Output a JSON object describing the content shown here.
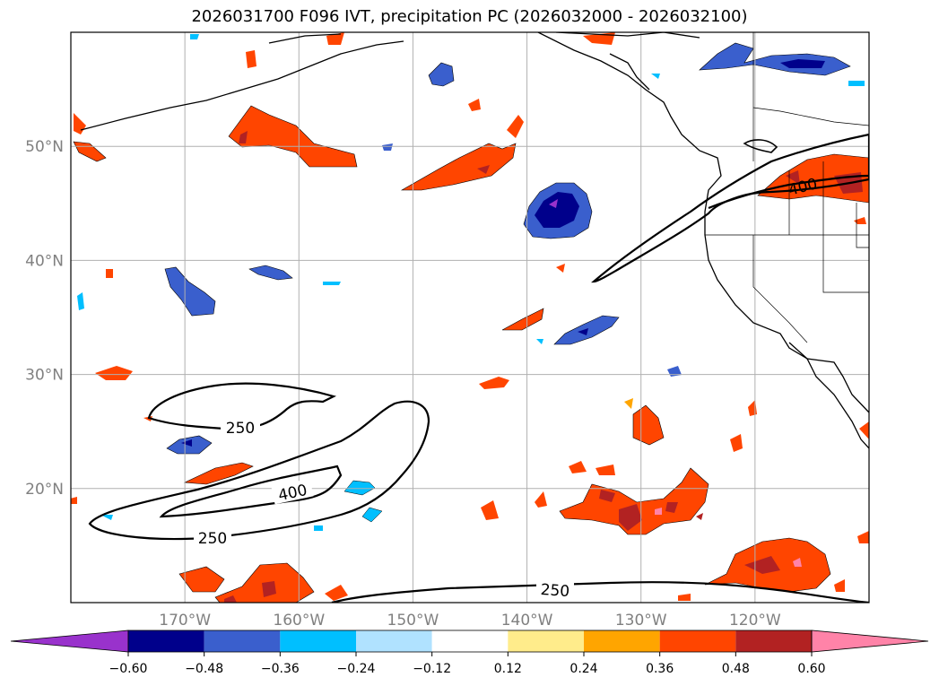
{
  "title": "2026031700 F096 IVT, precipitation PC (2026032000 - 2026032100)",
  "map": {
    "lat_labels": [
      {
        "lat": 50,
        "label": "50°N"
      },
      {
        "lat": 40,
        "label": "40°N"
      },
      {
        "lat": 30,
        "label": "30°N"
      },
      {
        "lat": 20,
        "label": "20°N"
      }
    ],
    "lon_labels": [
      {
        "lon": -170,
        "label": "170°W"
      },
      {
        "lon": -160,
        "label": "160°W"
      },
      {
        "lon": -150,
        "label": "150°W"
      },
      {
        "lon": -140,
        "label": "140°W"
      },
      {
        "lon": -130,
        "label": "130°W"
      },
      {
        "lon": -120,
        "label": "120°W"
      }
    ],
    "contour_labels": [
      "250",
      "400",
      "250",
      "250",
      "400"
    ],
    "contour_levels": [
      250,
      400
    ]
  },
  "colorbar": {
    "ticks": [
      "−0.60",
      "−0.48",
      "−0.36",
      "−0.24",
      "−0.12",
      "0.12",
      "0.24",
      "0.36",
      "0.48",
      "0.60"
    ],
    "colors": [
      "#9932cc",
      "#00008b",
      "#3a5fcd",
      "#00bfff",
      "#b0e2ff",
      "#ffffff",
      "#ffec8b",
      "#ffa500",
      "#ff4500",
      "#b22222",
      "#ff83a8"
    ]
  },
  "colors": {
    "grid": "#b0b0b0",
    "contour": "#000000",
    "coast": "#000000"
  }
}
